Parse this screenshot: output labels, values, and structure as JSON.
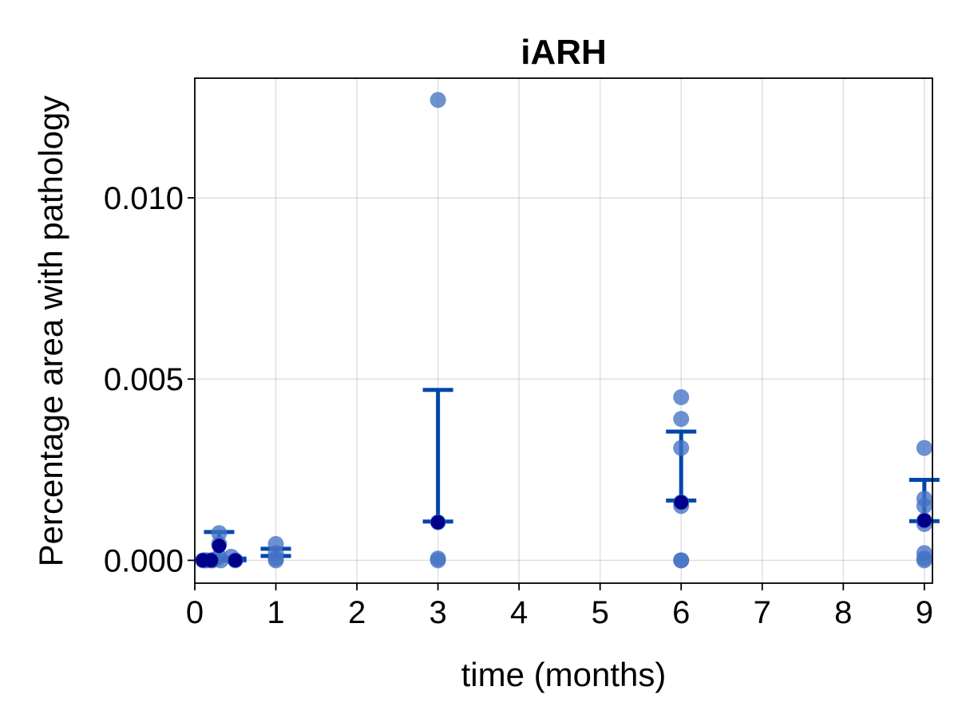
{
  "chart_data": {
    "type": "scatter",
    "title": "iARH",
    "xlabel": "time (months)",
    "ylabel": "Percentage area with pathology",
    "xlim": [
      0,
      9.1
    ],
    "ylim": [
      -0.00063,
      0.0133
    ],
    "xticks": [
      "0",
      "1",
      "2",
      "3",
      "4",
      "5",
      "6",
      "7",
      "8",
      "9"
    ],
    "yticks": [
      "0.000",
      "0.005",
      "0.010"
    ],
    "ytick_values": [
      0.0,
      0.005,
      0.01
    ],
    "grid": true,
    "point_color": "#4472c4",
    "mean_color": "#00008b",
    "errorbar_color": "#0047ab",
    "points": [
      {
        "x": 0.1,
        "y": 0.0
      },
      {
        "x": 0.12,
        "y": 0.0
      },
      {
        "x": 0.15,
        "y": 0.0
      },
      {
        "x": 0.2,
        "y": 0.0
      },
      {
        "x": 0.22,
        "y": 0.0
      },
      {
        "x": 0.25,
        "y": 3e-05
      },
      {
        "x": 0.3,
        "y": 0.00075
      },
      {
        "x": 0.3,
        "y": 0.00045
      },
      {
        "x": 0.3,
        "y": 0.0001
      },
      {
        "x": 0.32,
        "y": 0.0
      },
      {
        "x": 0.45,
        "y": 0.0001
      },
      {
        "x": 0.5,
        "y": 0.0
      },
      {
        "x": 1.0,
        "y": 0.00045
      },
      {
        "x": 1.0,
        "y": 0.0002
      },
      {
        "x": 1.0,
        "y": 5e-05
      },
      {
        "x": 1.0,
        "y": 0.0
      },
      {
        "x": 3.0,
        "y": 0.0127
      },
      {
        "x": 3.0,
        "y": 0.00105
      },
      {
        "x": 3.0,
        "y": 5e-05
      },
      {
        "x": 3.0,
        "y": 0.0
      },
      {
        "x": 6.0,
        "y": 0.0045
      },
      {
        "x": 6.0,
        "y": 0.0039
      },
      {
        "x": 6.0,
        "y": 0.0031
      },
      {
        "x": 6.0,
        "y": 0.0016
      },
      {
        "x": 6.0,
        "y": 0.0015
      },
      {
        "x": 6.0,
        "y": 0.0
      },
      {
        "x": 6.0,
        "y": 0.0
      },
      {
        "x": 9.0,
        "y": 0.0031
      },
      {
        "x": 9.0,
        "y": 0.0017
      },
      {
        "x": 9.0,
        "y": 0.0015
      },
      {
        "x": 9.0,
        "y": 0.0011
      },
      {
        "x": 9.0,
        "y": 0.001
      },
      {
        "x": 9.0,
        "y": 0.0002
      },
      {
        "x": 9.0,
        "y": 5e-05
      },
      {
        "x": 9.0,
        "y": 0.0
      }
    ],
    "means": [
      {
        "x": 0.1,
        "y": 0.0
      },
      {
        "x": 0.2,
        "y": 0.0
      },
      {
        "x": 0.3,
        "y": 0.0004
      },
      {
        "x": 0.5,
        "y": 0.0
      },
      {
        "x": 3.0,
        "y": 0.00105
      },
      {
        "x": 6.0,
        "y": 0.0016
      },
      {
        "x": 9.0,
        "y": 0.0011
      }
    ],
    "errorbars": [
      {
        "x": 0.3,
        "low": 7e-05,
        "high": 0.00078
      },
      {
        "x": 0.45,
        "low": 0.0,
        "high": 5e-05
      },
      {
        "x": 1.0,
        "low": 0.00012,
        "high": 0.00032
      },
      {
        "x": 3.0,
        "low": 0.00107,
        "high": 0.0047
      },
      {
        "x": 6.0,
        "low": 0.00165,
        "high": 0.00355
      },
      {
        "x": 9.0,
        "low": 0.00108,
        "high": 0.00222
      }
    ]
  }
}
